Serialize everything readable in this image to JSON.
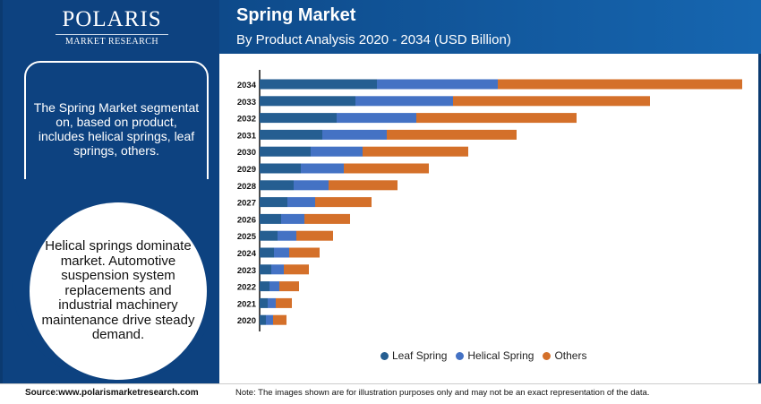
{
  "logo": {
    "name": "POLARIS",
    "sub": "MARKET RESEARCH"
  },
  "header": {
    "title": "Spring Market",
    "subtitle": "By Product Analysis 2020 - 2034 (USD Billion)"
  },
  "left": {
    "box_text": "The Spring Market segmentat on, based on product, includes helical springs, leaf springs, others.",
    "circle_text": "Helical springs dominate market. Automotive suspension system replacements and industrial machinery maintenance drive steady demand."
  },
  "footer": {
    "source": "Source:www.polarismarketresearch.com",
    "note": "Note: The images shown are for illustration purposes only and may not be an exact representation of the data."
  },
  "chart_data": {
    "type": "bar",
    "orientation": "horizontal",
    "stacked": true,
    "title": "",
    "xlabel": "",
    "ylabel": "",
    "categories": [
      "2034",
      "2033",
      "2032",
      "2031",
      "2030",
      "2029",
      "2028",
      "2027",
      "2026",
      "2025",
      "2024",
      "2023",
      "2022",
      "2021",
      "2020"
    ],
    "series": [
      {
        "name": "Leaf Spring",
        "color": "#255e91",
        "values": [
          131,
          107,
          86,
          70,
          57,
          46,
          38,
          31,
          24,
          20,
          16,
          13,
          11,
          9,
          7
        ]
      },
      {
        "name": "Helical Spring",
        "color": "#4472c4",
        "values": [
          135,
          109,
          89,
          72,
          58,
          48,
          39,
          31,
          26,
          21,
          17,
          14,
          11,
          9,
          8
        ]
      },
      {
        "name": "Others",
        "color": "#d4702a",
        "values": [
          273,
          220,
          179,
          145,
          118,
          95,
          77,
          63,
          51,
          41,
          34,
          28,
          22,
          18,
          15
        ]
      }
    ],
    "grid": false,
    "x_axis_labels": false,
    "legend": "bottom"
  }
}
